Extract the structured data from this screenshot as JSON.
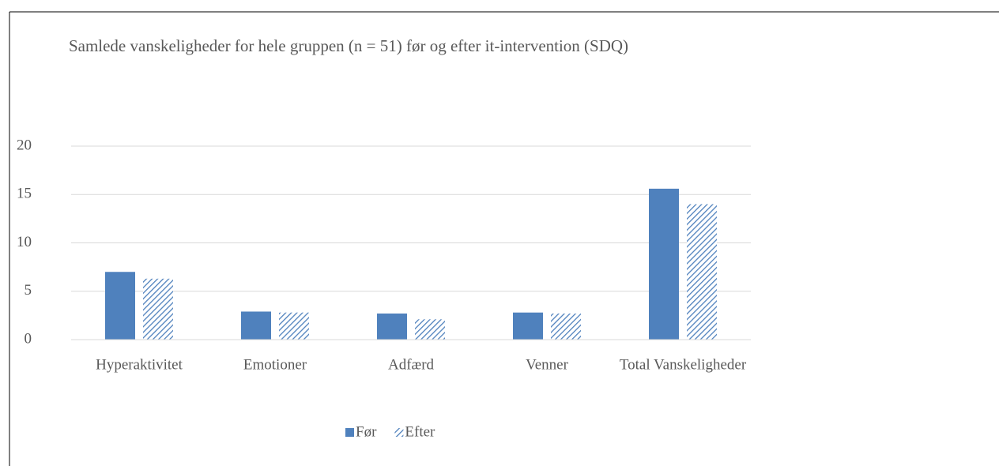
{
  "chart_data": {
    "type": "bar",
    "title": "Samlede vanskeligheder for hele gruppen (n = 51) før og efter it-intervention (SDQ)",
    "categories": [
      "Hyperaktivitet",
      "Emotioner",
      "Adfærd",
      "Venner",
      "Total Vanskeligheder"
    ],
    "series": [
      {
        "name": "Før",
        "color": "#4f81bd",
        "values": [
          7.0,
          2.9,
          2.7,
          2.8,
          15.6
        ]
      },
      {
        "name": "Efter",
        "color": "#4f81bd",
        "values": [
          6.3,
          2.8,
          2.1,
          2.7,
          14.0
        ]
      }
    ],
    "ylim": [
      0,
      20
    ],
    "yticks": [
      0,
      5,
      10,
      15,
      20
    ],
    "grid": true,
    "legend": "bottom"
  }
}
